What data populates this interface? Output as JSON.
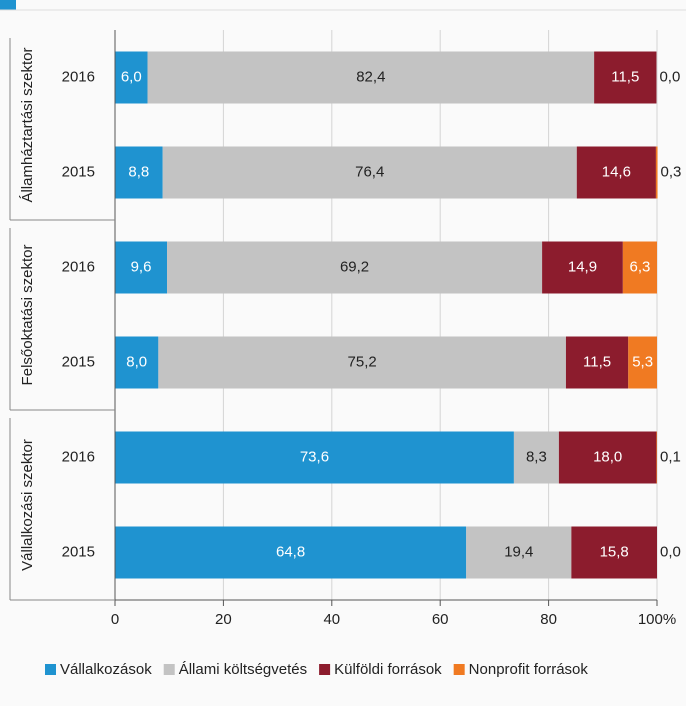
{
  "chart_data": {
    "type": "stacked-bar-horizontal",
    "groups": [
      "Államháztartási szektor",
      "Felsőoktatási szektor",
      "Vállalkozási szektor"
    ],
    "categories": [
      "2016",
      "2015",
      "2016",
      "2015",
      "2016",
      "2015"
    ],
    "series": [
      {
        "name": "Vállalkozások",
        "color": "#1f93d0",
        "values": [
          6.0,
          8.8,
          9.6,
          8.0,
          73.6,
          64.8
        ],
        "value_labels": [
          "6,0",
          "8,8",
          "9,6",
          "8,0",
          "73,6",
          "64,8"
        ]
      },
      {
        "name": "Állami költségvetés",
        "color": "#c3c3c3",
        "values": [
          82.4,
          76.4,
          69.2,
          75.2,
          8.3,
          19.4
        ],
        "value_labels": [
          "82,4",
          "76,4",
          "69,2",
          "75,2",
          "8,3",
          "19,4"
        ]
      },
      {
        "name": "Külföldi források",
        "color": "#8c1c2d",
        "values": [
          11.5,
          14.6,
          14.9,
          11.5,
          18.0,
          15.8
        ],
        "value_labels": [
          "11,5",
          "14,6",
          "14,9",
          "11,5",
          "18,0",
          "15,8"
        ]
      },
      {
        "name": "Nonprofit források",
        "color": "#f07a22",
        "values": [
          0.0,
          0.3,
          6.3,
          5.3,
          0.1,
          0.0
        ],
        "value_labels": [
          "0,0",
          "0,3",
          "6,3",
          "5,3",
          "0,1",
          "0,0"
        ]
      }
    ],
    "xlim": [
      0,
      100
    ],
    "xticks": [
      0,
      20,
      40,
      60,
      80,
      {
        "value": 100,
        "label": "100%"
      }
    ],
    "grid": true
  }
}
